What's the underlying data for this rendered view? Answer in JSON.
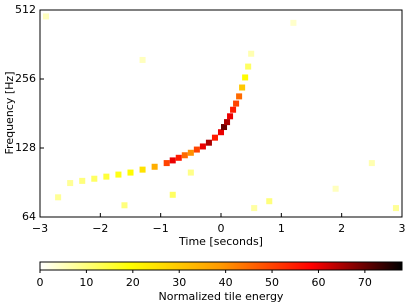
{
  "chart_data": {
    "type": "heatmap",
    "xlabel": "Time [seconds]",
    "ylabel": "Frequency [Hz]",
    "xlim": [
      -3,
      3
    ],
    "xticks": [
      {
        "value": -3,
        "label": "−3"
      },
      {
        "value": -2,
        "label": "−2"
      },
      {
        "value": -1,
        "label": "−1"
      },
      0,
      1,
      2,
      3
    ],
    "ylim": [
      64,
      512
    ],
    "yscale": "log",
    "yticks": [
      64,
      128,
      256,
      512
    ],
    "tiles": {
      "x": [
        -2.5,
        -2.3,
        -2.1,
        -1.9,
        -1.7,
        -1.5,
        -1.3,
        -1.1,
        -0.9,
        -0.8,
        -0.7,
        -0.6,
        -0.5,
        -0.4,
        -0.3,
        -0.2,
        -0.1,
        0,
        0.05,
        0.1,
        0.15,
        0.2,
        0.25,
        0.3,
        0.35,
        0.4,
        0.45,
        0.5,
        -2.7,
        -1.6,
        -0.8,
        0.8,
        2.5,
        2.9,
        -2.9,
        1.2,
        -1.3,
        -0.5,
        0.55,
        1.9
      ],
      "y": [
        90,
        92,
        94,
        96,
        98,
        100,
        103,
        106,
        110,
        113,
        116,
        119,
        122,
        126,
        130,
        135,
        142,
        150,
        158,
        166,
        176,
        188,
        200,
        215,
        235,
        260,
        290,
        330,
        78,
        72,
        80,
        75,
        110,
        70,
        480,
        450,
        310,
        100,
        70,
        85
      ],
      "values": [
        8,
        10,
        12,
        15,
        18,
        20,
        25,
        35,
        50,
        60,
        55,
        45,
        40,
        50,
        60,
        65,
        55,
        60,
        70,
        65,
        60,
        55,
        50,
        45,
        30,
        20,
        12,
        6,
        8,
        10,
        12,
        10,
        6,
        8,
        5,
        4,
        5,
        9,
        7,
        5
      ]
    },
    "colormap": [
      "#ffffff",
      "#ffff00",
      "#ff9900",
      "#ff0000",
      "#000000"
    ],
    "clim": [
      0,
      78
    ],
    "colorbar_label": "Normalized tile energy",
    "colorbar_ticks": [
      0,
      10,
      20,
      30,
      40,
      50,
      60,
      70
    ]
  }
}
